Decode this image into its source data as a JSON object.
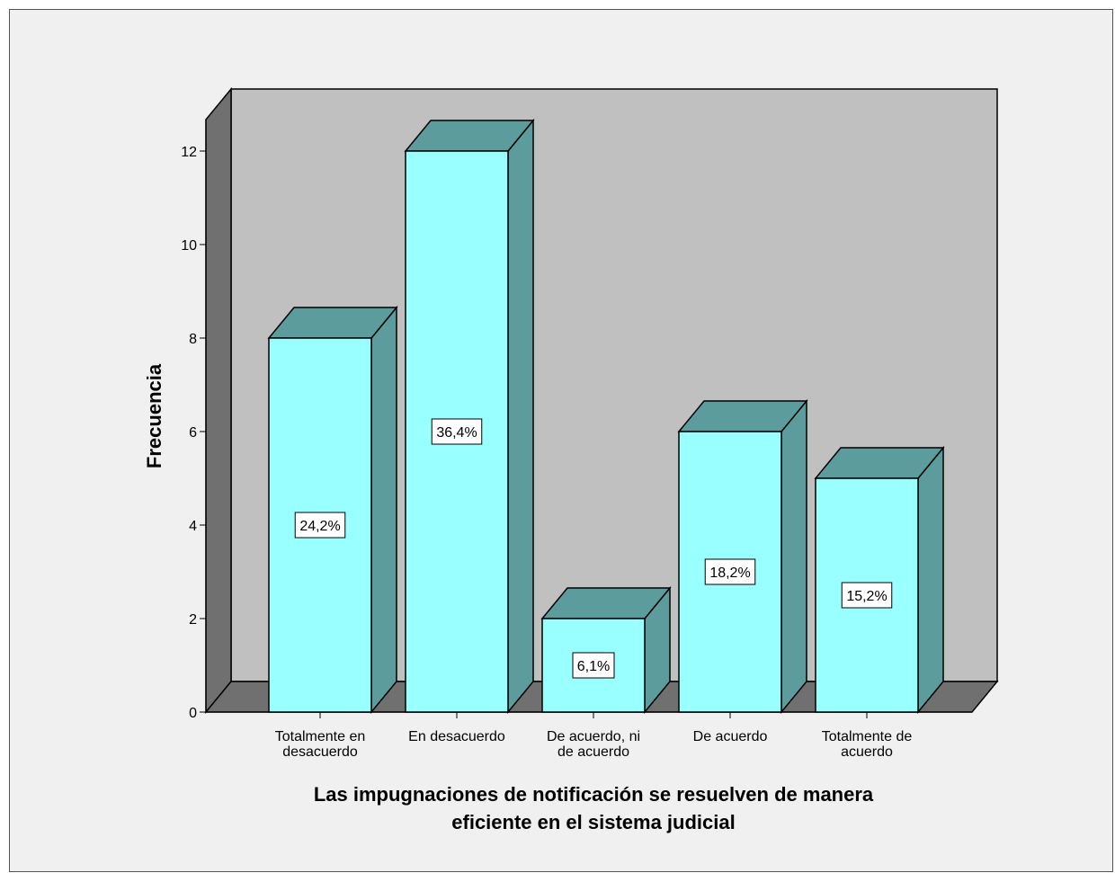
{
  "chart_data": {
    "type": "bar",
    "style": "3d",
    "title": "",
    "xlabel_lines": [
      "Las impugnaciones de notificación se resuelven de manera",
      "eficiente en el sistema judicial"
    ],
    "ylabel": "Frecuencia",
    "ylim": [
      0,
      12
    ],
    "yticks": [
      "0",
      "2",
      "4",
      "6",
      "8",
      "10",
      "12"
    ],
    "categories": [
      [
        "Totalmente en",
        "desacuerdo"
      ],
      [
        "En desacuerdo"
      ],
      [
        "De acuerdo, ni",
        "de acuerdo"
      ],
      [
        "De acuerdo"
      ],
      [
        "Totalmente de",
        "acuerdo"
      ]
    ],
    "values": [
      8,
      12,
      2,
      6,
      5
    ],
    "data_labels": [
      "24,2%",
      "36,4%",
      "6,1%",
      "18,2%",
      "15,2%"
    ],
    "grid": false,
    "colors": {
      "bar_front": "#99ffff",
      "bar_side": "#5c9c9c",
      "bar_top": "#5c9c9c",
      "back_wall": "#c0c0c0",
      "side_wall": "#707070",
      "floor": "#707070",
      "frame_bg": "#f0f0f0"
    }
  }
}
